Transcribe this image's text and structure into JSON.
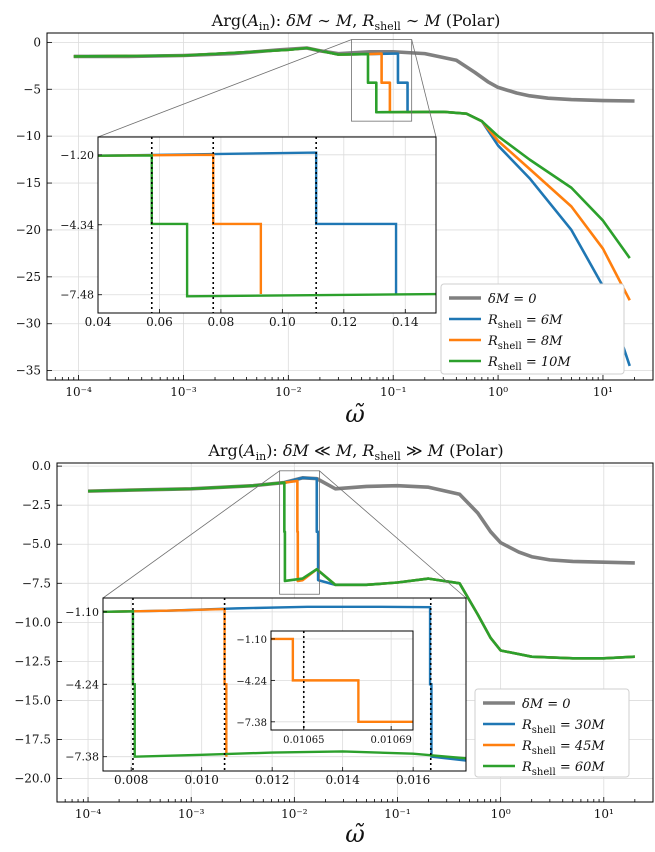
{
  "colors": {
    "grey": "#808080",
    "blue": "#1f77b4",
    "orange": "#ff7f0e",
    "green": "#2ca02c"
  },
  "chart_data": [
    {
      "type": "line",
      "title": "Arg(A_in): δM ~ M, R_shell ~ M (Polar)",
      "xlabel": "ω̃",
      "ylabel": "",
      "xscale": "log",
      "xlim": [
        5e-05,
        30
      ],
      "ylim": [
        -36,
        1
      ],
      "grid": true,
      "legend_position": "lower-right",
      "x_ticks": [
        0.0001,
        0.001,
        0.01,
        0.1,
        1,
        10
      ],
      "x_tick_labels": [
        "10⁻⁴",
        "10⁻³",
        "10⁻²",
        "10⁻¹",
        "10⁰",
        "10¹"
      ],
      "y_ticks": [
        0,
        -5,
        -10,
        -15,
        -20,
        -25,
        -30,
        -35
      ],
      "y_tick_labels": [
        "0",
        "−5",
        "−10",
        "−15",
        "−20",
        "−25",
        "−30",
        "−35"
      ],
      "series": [
        {
          "name": "δM = 0",
          "color": "#808080",
          "x": [
            9e-05,
            0.0003,
            0.001,
            0.003,
            0.008,
            0.015,
            0.02,
            0.03,
            0.06,
            0.1,
            0.2,
            0.4,
            0.6,
            0.8,
            1,
            1.5,
            2,
            3,
            5,
            10,
            20
          ],
          "y": [
            -1.5,
            -1.5,
            -1.4,
            -1.2,
            -0.8,
            -0.6,
            -0.9,
            -1.2,
            -1.0,
            -1.0,
            -1.2,
            -1.9,
            -3.2,
            -4.2,
            -4.8,
            -5.4,
            -5.7,
            -5.95,
            -6.1,
            -6.2,
            -6.25
          ]
        },
        {
          "name": "R_shell = 6M",
          "color": "#1f77b4",
          "x": [
            9e-05,
            0.001,
            0.01,
            0.015,
            0.03,
            0.06,
            0.1,
            0.111,
            0.111,
            0.137,
            0.137,
            0.3,
            0.5,
            0.7,
            1,
            2,
            5,
            10,
            18
          ],
          "y": [
            -1.5,
            -1.4,
            -0.8,
            -0.6,
            -1.3,
            -1.25,
            -1.2,
            -1.2,
            -4.3,
            -4.3,
            -7.45,
            -7.4,
            -7.6,
            -8.4,
            -11,
            -14.5,
            -20,
            -26,
            -34.5
          ]
        },
        {
          "name": "R_shell = 8M",
          "color": "#ff7f0e",
          "x": [
            9e-05,
            0.001,
            0.01,
            0.015,
            0.03,
            0.06,
            0.0775,
            0.0775,
            0.093,
            0.093,
            0.3,
            0.5,
            0.7,
            1,
            2,
            5,
            10,
            18
          ],
          "y": [
            -1.5,
            -1.4,
            -0.8,
            -0.6,
            -1.3,
            -1.25,
            -1.2,
            -4.3,
            -4.3,
            -7.45,
            -7.4,
            -7.6,
            -8.4,
            -10.5,
            -13.5,
            -17.5,
            -22,
            -27.5
          ]
        },
        {
          "name": "R_shell = 10M",
          "color": "#2ca02c",
          "x": [
            9e-05,
            0.001,
            0.01,
            0.015,
            0.03,
            0.0575,
            0.0575,
            0.069,
            0.069,
            0.3,
            0.5,
            0.7,
            1,
            2,
            5,
            10,
            18
          ],
          "y": [
            -1.5,
            -1.4,
            -0.8,
            -0.6,
            -1.3,
            -1.25,
            -4.3,
            -4.3,
            -7.45,
            -7.4,
            -7.6,
            -8.4,
            -10,
            -12.5,
            -15.5,
            -19,
            -23
          ]
        }
      ],
      "inset": {
        "xlim": [
          0.04,
          0.15
        ],
        "ylim": [
          -8.3,
          -0.4
        ],
        "x_ticks": [
          0.04,
          0.06,
          0.08,
          0.1,
          0.12,
          0.14
        ],
        "x_tick_labels": [
          "0.04",
          "0.06",
          "0.08",
          "0.10",
          "0.12",
          "0.14"
        ],
        "y_ticks": [
          -1.2,
          -4.34,
          -7.48
        ],
        "y_tick_labels": [
          "−1.20",
          "−4.34",
          "−7.48"
        ],
        "vlines": [
          0.0575,
          0.0775,
          0.111
        ],
        "series": [
          {
            "color": "#1f77b4",
            "x": [
              0.04,
              0.111,
              0.111,
              0.137,
              0.137
            ],
            "y": [
              -1.24,
              -1.1,
              -4.3,
              -4.3,
              -7.45
            ]
          },
          {
            "color": "#ff7f0e",
            "x": [
              0.04,
              0.0775,
              0.0775,
              0.093,
              0.093
            ],
            "y": [
              -1.24,
              -1.2,
              -4.3,
              -4.3,
              -7.45
            ]
          },
          {
            "color": "#2ca02c",
            "x": [
              0.04,
              0.0575,
              0.0575,
              0.069,
              0.069,
              0.15
            ],
            "y": [
              -1.24,
              -1.23,
              -4.3,
              -4.3,
              -7.55,
              -7.45
            ]
          }
        ]
      }
    },
    {
      "type": "line",
      "title": "Arg(A_in): δM ≪ M, R_shell ≫ M (Polar)",
      "xlabel": "ω̃",
      "ylabel": "",
      "xscale": "log",
      "xlim": [
        5e-05,
        30
      ],
      "ylim": [
        -21.5,
        0.2
      ],
      "grid": true,
      "legend_position": "lower-right",
      "x_ticks": [
        0.0001,
        0.001,
        0.01,
        0.1,
        1,
        10
      ],
      "x_tick_labels": [
        "10⁻⁴",
        "10⁻³",
        "10⁻²",
        "10⁻¹",
        "10⁰",
        "10¹"
      ],
      "y_ticks": [
        0,
        -2.5,
        -5,
        -7.5,
        -10,
        -12.5,
        -15,
        -17.5,
        -20
      ],
      "y_tick_labels": [
        "0.0",
        "−2.5",
        "−5.0",
        "−7.5",
        "−10.0",
        "−12.5",
        "−15.0",
        "−17.5",
        "−20.0"
      ],
      "series": [
        {
          "name": "δM = 0",
          "color": "#808080",
          "x": [
            0.0001,
            0.001,
            0.004,
            0.008,
            0.012,
            0.0165,
            0.025,
            0.05,
            0.1,
            0.2,
            0.4,
            0.6,
            0.8,
            1,
            1.5,
            2,
            3,
            5,
            10,
            20
          ],
          "y": [
            -1.6,
            -1.45,
            -1.25,
            -1.05,
            -0.75,
            -0.8,
            -1.45,
            -1.3,
            -1.25,
            -1.35,
            -1.8,
            -3,
            -4.2,
            -4.9,
            -5.5,
            -5.8,
            -6,
            -6.1,
            -6.15,
            -6.2
          ]
        },
        {
          "name": "R_shell = 30M",
          "color": "#1f77b4",
          "x": [
            0.0001,
            0.001,
            0.004,
            0.008,
            0.012,
            0.0165,
            0.0165,
            0.017,
            0.017,
            0.025,
            0.05,
            0.1,
            0.2,
            0.4,
            0.6,
            0.8,
            1,
            2,
            5,
            10,
            20
          ],
          "y": [
            -1.6,
            -1.45,
            -1.25,
            -1.05,
            -0.75,
            -0.8,
            -4.2,
            -4.2,
            -7.3,
            -7.6,
            -7.6,
            -7.45,
            -7.2,
            -7.5,
            -9.5,
            -11,
            -11.8,
            -12.2,
            -12.3,
            -12.3,
            -12.2
          ]
        },
        {
          "name": "R_shell = 45M",
          "color": "#ff7f0e",
          "x": [
            0.0001,
            0.001,
            0.004,
            0.008,
            0.0107,
            0.0107,
            0.0108,
            0.0108,
            0.012,
            0.0165,
            0.025,
            0.05,
            0.1,
            0.2,
            0.4,
            0.6,
            0.8,
            1,
            2,
            5,
            10,
            20
          ],
          "y": [
            -1.6,
            -1.45,
            -1.25,
            -1.05,
            -0.95,
            -4.2,
            -4.2,
            -7.35,
            -7.3,
            -6.6,
            -7.6,
            -7.6,
            -7.45,
            -7.2,
            -7.5,
            -9.5,
            -11,
            -11.8,
            -12.2,
            -12.3,
            -12.3,
            -12.2
          ]
        },
        {
          "name": "R_shell = 60M",
          "color": "#2ca02c",
          "x": [
            0.0001,
            0.001,
            0.004,
            0.008,
            0.008,
            0.0081,
            0.0081,
            0.012,
            0.0165,
            0.025,
            0.05,
            0.1,
            0.2,
            0.4,
            0.6,
            0.8,
            1,
            2,
            5,
            10,
            20
          ],
          "y": [
            -1.6,
            -1.45,
            -1.25,
            -1.05,
            -4.2,
            -4.2,
            -7.35,
            -7.2,
            -6.6,
            -7.6,
            -7.6,
            -7.45,
            -7.2,
            -7.5,
            -9.5,
            -11,
            -11.8,
            -12.2,
            -12.3,
            -12.3,
            -12.2
          ]
        }
      ],
      "inset": {
        "xlim": [
          0.0072,
          0.0175
        ],
        "ylim": [
          -8.0,
          -0.5
        ],
        "x_ticks": [
          0.008,
          0.01,
          0.012,
          0.014,
          0.016
        ],
        "x_tick_labels": [
          "0.008",
          "0.010",
          "0.012",
          "0.014",
          "0.016"
        ],
        "y_ticks": [
          -1.1,
          -4.24,
          -7.38
        ],
        "y_tick_labels": [
          "−1.10",
          "−4.24",
          "−7.38"
        ],
        "vlines": [
          0.00805,
          0.01065,
          0.0165
        ],
        "series": [
          {
            "color": "#1f77b4",
            "x": [
              0.0072,
              0.009,
              0.011,
              0.013,
              0.015,
              0.01648,
              0.01648,
              0.01652,
              0.01652,
              0.0175
            ],
            "y": [
              -1.1,
              -1.05,
              -0.95,
              -0.88,
              -0.88,
              -0.9,
              -4.24,
              -4.24,
              -7.38,
              -7.55
            ]
          },
          {
            "color": "#ff7f0e",
            "x": [
              0.0072,
              0.009,
              0.01065,
              0.01065,
              0.0107,
              0.0107
            ],
            "y": [
              -1.1,
              -1.05,
              -0.98,
              -4.24,
              -4.24,
              -7.38
            ]
          },
          {
            "color": "#2ca02c",
            "x": [
              0.0072,
              0.00805,
              0.00805,
              0.0081,
              0.0081,
              0.01,
              0.012,
              0.014,
              0.016,
              0.0175
            ],
            "y": [
              -1.1,
              -1.08,
              -4.24,
              -4.24,
              -7.38,
              -7.3,
              -7.2,
              -7.15,
              -7.25,
              -7.45
            ]
          }
        ],
        "subinset": {
          "xlim": [
            0.010635,
            0.0107
          ],
          "ylim": [
            -8.0,
            -0.5
          ],
          "x_ticks": [
            0.01065,
            0.01069
          ],
          "x_tick_labels": [
            "0.01065",
            "0.01069"
          ],
          "y_ticks": [
            -1.1,
            -4.24,
            -7.38
          ],
          "y_tick_labels": [
            "−1.10",
            "−4.24",
            "−7.38"
          ],
          "vlines": [
            0.01065
          ],
          "series": [
            {
              "color": "#ff7f0e",
              "x": [
                0.010635,
                0.010645,
                0.010645,
                0.010675,
                0.010675,
                0.0107
              ],
              "y": [
                -1.1,
                -1.1,
                -4.24,
                -4.24,
                -7.38,
                -7.38
              ]
            }
          ]
        }
      }
    }
  ]
}
